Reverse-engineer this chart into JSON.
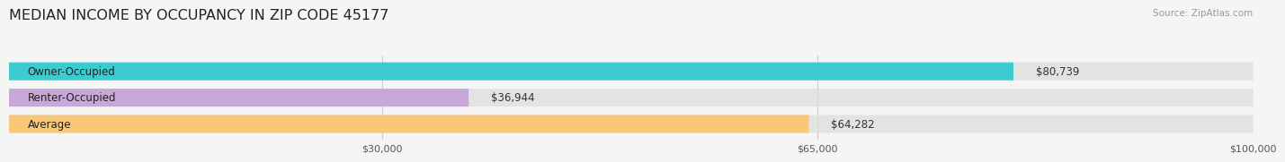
{
  "title": "MEDIAN INCOME BY OCCUPANCY IN ZIP CODE 45177",
  "source": "Source: ZipAtlas.com",
  "categories": [
    "Owner-Occupied",
    "Renter-Occupied",
    "Average"
  ],
  "values": [
    80739,
    36944,
    64282
  ],
  "bar_colors": [
    "#3ecbd0",
    "#c8a8d8",
    "#f8c878"
  ],
  "bar_bg_color": "#e0e0e0",
  "value_labels": [
    "$80,739",
    "$36,944",
    "$64,282"
  ],
  "xmin": 0,
  "xmax": 100000,
  "xticks": [
    30000,
    65000,
    100000
  ],
  "xtick_labels": [
    "$30,000",
    "$65,000",
    "$100,000"
  ],
  "title_fontsize": 11.5,
  "label_fontsize": 8.5,
  "value_fontsize": 8.5,
  "tick_fontsize": 8,
  "source_fontsize": 7.5,
  "background_color": "#f5f5f5"
}
